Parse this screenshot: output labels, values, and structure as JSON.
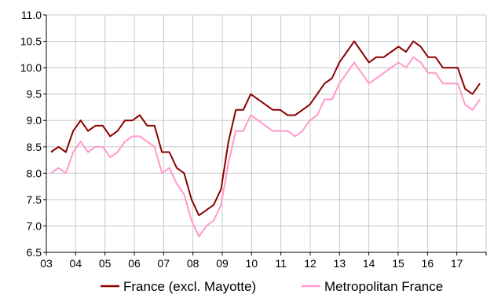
{
  "chart_data": {
    "type": "line",
    "title": "",
    "xlabel": "",
    "ylabel": "",
    "x_tick_labels": [
      "03",
      "04",
      "05",
      "06",
      "07",
      "08",
      "09",
      "10",
      "11",
      "12",
      "13",
      "14",
      "15",
      "16",
      "17"
    ],
    "ylim": [
      6.5,
      11.0
    ],
    "y_ticks": [
      6.5,
      7.0,
      7.5,
      8.0,
      8.5,
      9.0,
      9.5,
      10.0,
      10.5,
      11.0
    ],
    "y_tick_labels": [
      "6.5",
      "7.0",
      "7.5",
      "8.0",
      "8.5",
      "9.0",
      "9.5",
      "10.0",
      "10.5",
      "11.0"
    ],
    "grid": true,
    "legend": "bottom",
    "series": [
      {
        "name": "France (excl. Mayotte)",
        "color": "#8b0000",
        "values": [
          8.4,
          8.5,
          8.4,
          8.8,
          9.0,
          8.8,
          8.9,
          8.9,
          8.7,
          8.8,
          9.0,
          9.0,
          9.1,
          8.9,
          8.9,
          8.4,
          8.4,
          8.1,
          8.0,
          7.5,
          7.2,
          7.3,
          7.4,
          7.7,
          8.6,
          9.2,
          9.2,
          9.5,
          9.4,
          9.3,
          9.2,
          9.2,
          9.1,
          9.1,
          9.2,
          9.3,
          9.5,
          9.7,
          9.8,
          10.1,
          10.3,
          10.5,
          10.3,
          10.1,
          10.2,
          10.2,
          10.3,
          10.4,
          10.3,
          10.5,
          10.4,
          10.2,
          10.2,
          10.0,
          10.0,
          10.0,
          9.6,
          9.5,
          9.7
        ]
      },
      {
        "name": "Metropolitan France",
        "color": "#ff99cc",
        "values": [
          8.0,
          8.1,
          8.0,
          8.4,
          8.6,
          8.4,
          8.5,
          8.5,
          8.3,
          8.4,
          8.6,
          8.7,
          8.7,
          8.6,
          8.5,
          8.0,
          8.1,
          7.8,
          7.6,
          7.1,
          6.8,
          7.0,
          7.1,
          7.4,
          8.2,
          8.8,
          8.8,
          9.1,
          9.0,
          8.9,
          8.8,
          8.8,
          8.8,
          8.7,
          8.8,
          9.0,
          9.1,
          9.4,
          9.4,
          9.7,
          9.9,
          10.1,
          9.9,
          9.7,
          9.8,
          9.9,
          10.0,
          10.1,
          10.0,
          10.2,
          10.1,
          9.9,
          9.9,
          9.7,
          9.7,
          9.7,
          9.3,
          9.2,
          9.4
        ]
      }
    ]
  }
}
